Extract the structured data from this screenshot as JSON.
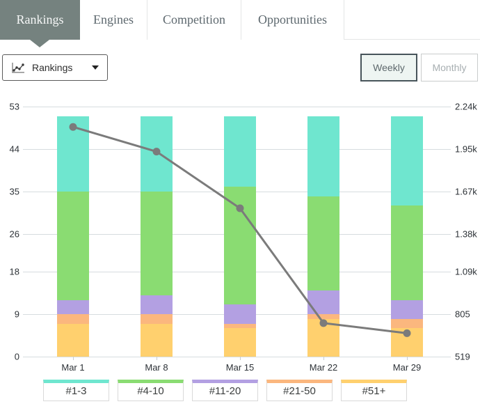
{
  "tabs": [
    {
      "label": "Rankings",
      "active": true
    },
    {
      "label": "Engines",
      "active": false
    },
    {
      "label": "Competition",
      "active": false
    },
    {
      "label": "Opportunities",
      "active": false
    }
  ],
  "controls": {
    "metric_dropdown": {
      "selected": "Rankings",
      "icon": "scatter-chart-icon"
    },
    "weekly_label": "Weekly",
    "monthly_label": "Monthly",
    "active_toggle": "Weekly"
  },
  "theme": {
    "active_tab_bg": "#75827f",
    "weekly_border": "#47545a",
    "weekly_bg": "#eef5f2",
    "gridline": "#d6dcdf",
    "line_color": "#7b7b7b"
  },
  "chart_data": {
    "type": "bar",
    "subtype": "stacked-bars-with-line-overlay",
    "categories": [
      "Mar 1",
      "Mar 8",
      "Mar 15",
      "Mar 22",
      "Mar 29"
    ],
    "series": [
      {
        "name": "#51+",
        "color": "#ffd06e",
        "values": [
          7,
          7,
          6,
          8,
          6
        ]
      },
      {
        "name": "#21-50",
        "color": "#fbb77e",
        "values": [
          2,
          2,
          1,
          1,
          2
        ]
      },
      {
        "name": "#11-20",
        "color": "#b3a0e2",
        "values": [
          3,
          4,
          4,
          5,
          4
        ]
      },
      {
        "name": "#4-10",
        "color": "#8adc72",
        "values": [
          23,
          22,
          25,
          20,
          20
        ]
      },
      {
        "name": "#1-3",
        "color": "#6fe6cf",
        "values": [
          16,
          16,
          15,
          17,
          19
        ]
      }
    ],
    "line_series": {
      "color": "#7b7b7b",
      "axis": "right",
      "values": [
        2100,
        1930,
        1540,
        750,
        680
      ]
    },
    "left_axis": {
      "ticks": [
        0,
        9,
        18,
        26,
        35,
        44,
        53
      ],
      "min": 0,
      "max": 53
    },
    "right_axis": {
      "tick_labels": [
        "519",
        "805",
        "1.09k",
        "1.38k",
        "1.67k",
        "1.95k",
        "2.24k"
      ],
      "min": 519,
      "max": 2240
    },
    "legend": [
      {
        "label": "#1-3",
        "color": "#6fe6cf"
      },
      {
        "label": "#4-10",
        "color": "#8adc72"
      },
      {
        "label": "#11-20",
        "color": "#b3a0e2"
      },
      {
        "label": "#21-50",
        "color": "#fbb77e"
      },
      {
        "label": "#51+",
        "color": "#ffd06e"
      }
    ],
    "grid": true,
    "legend_position": "bottom"
  }
}
